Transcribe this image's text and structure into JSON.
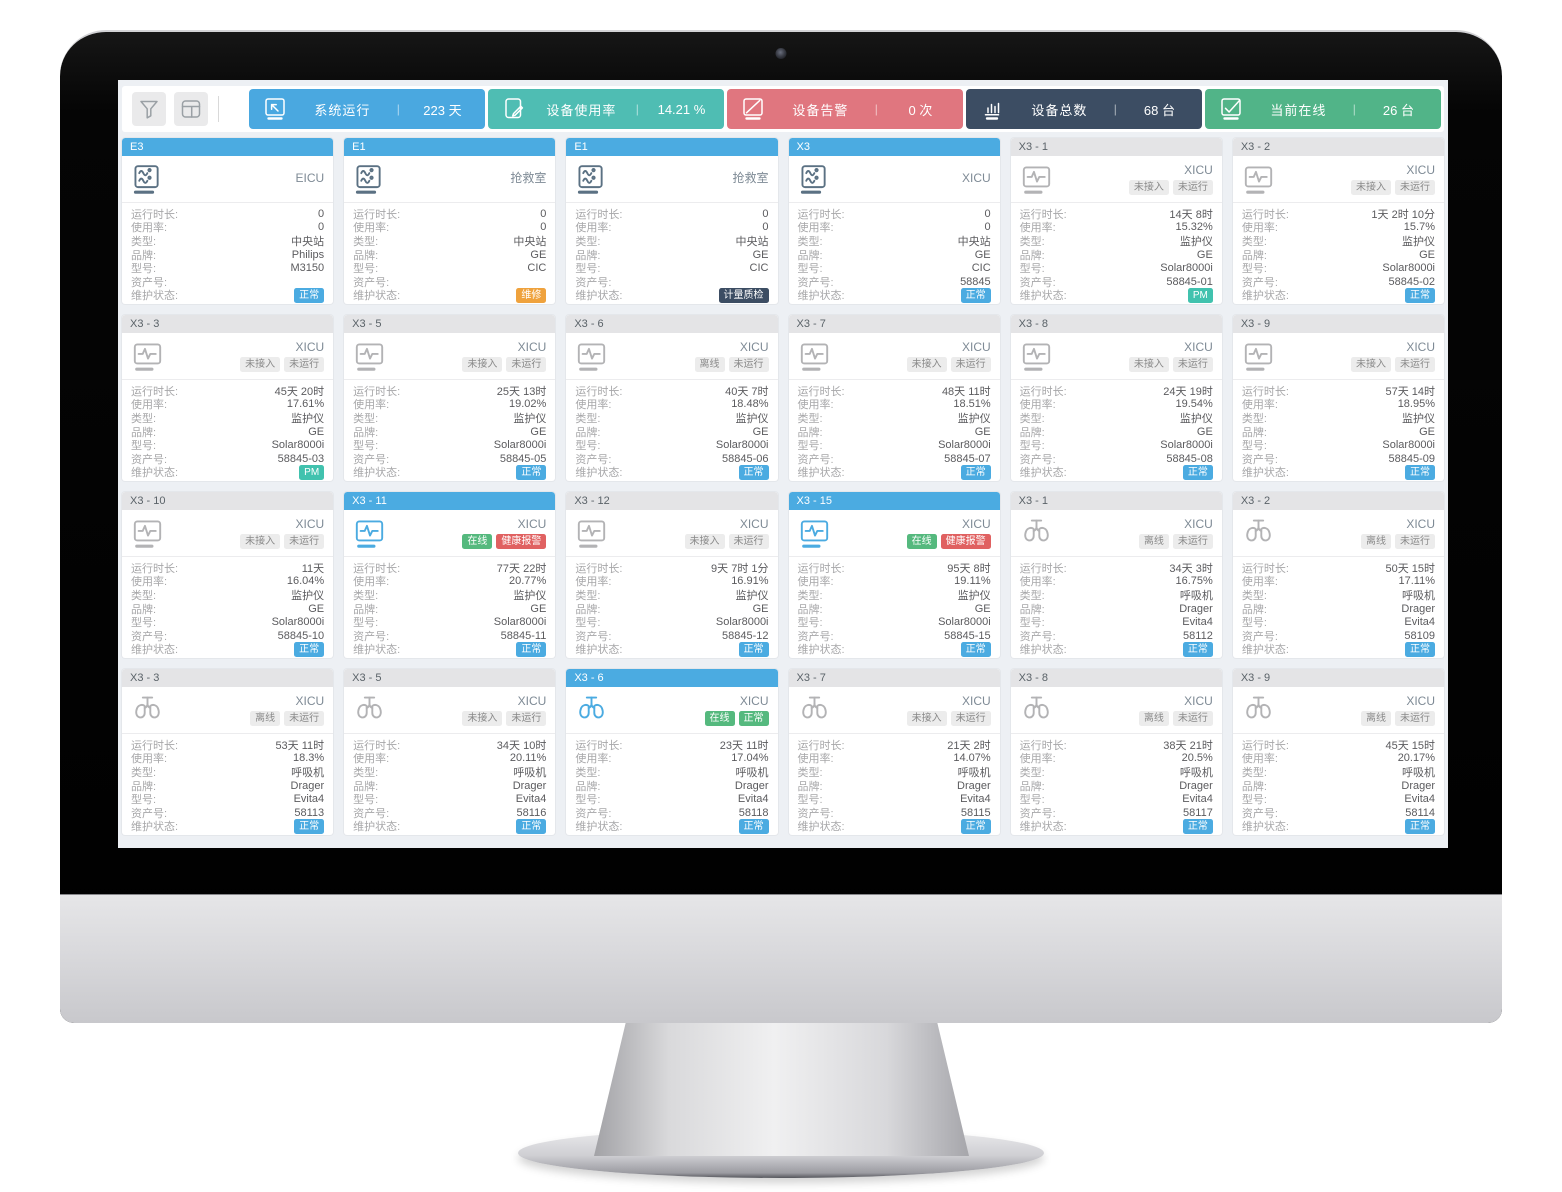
{
  "monitor": {
    "camera_dot": true
  },
  "toolbar": {
    "filter_button": {
      "icon": "funnel-icon"
    },
    "layout_button": {
      "icon": "layout-icon"
    },
    "stats": [
      {
        "icon": "monitor-cursor-icon",
        "label": "系统运行",
        "value": "223 天",
        "color": "#4aa8e0"
      },
      {
        "icon": "tablet-edit-icon",
        "label": "设备使用率",
        "value": "14.21 %",
        "color": "#4fbdb3"
      },
      {
        "icon": "monitor-alert-icon",
        "label": "设备告警",
        "value": "0 次",
        "color": "#e0767f"
      },
      {
        "icon": "bar-chart-icon",
        "label": "设备总数",
        "value": "68 台",
        "color": "#3c4d63"
      },
      {
        "icon": "monitor-online-icon",
        "label": "当前在线",
        "value": "26 台",
        "color": "#51b488"
      }
    ]
  },
  "field_labels": {
    "runtime": "运行时长:",
    "usage": "使用率:",
    "type": "类型:",
    "brand": "品牌:",
    "model": "型号:",
    "asset": "资产号:",
    "maintenance": "维护状态:"
  },
  "header_colors": {
    "blue": {
      "bg": "#4babe1",
      "fg": "#ffffff"
    },
    "gray": {
      "bg": "#e4e4e6",
      "fg": "#5a6268"
    }
  },
  "icon_colors": {
    "slate": "#5b7183",
    "gray": "#b3b3b5",
    "online": "#4babe1"
  },
  "status_colors": {
    "gray": {
      "bg": "#ececec",
      "fg": "#898989"
    },
    "green": {
      "bg": "#55b97e",
      "fg": "#ffffff"
    },
    "red": {
      "bg": "#e06161",
      "fg": "#ffffff"
    },
    "blue": {
      "bg": "#4babe1",
      "fg": "#ffffff"
    },
    "orange": {
      "bg": "#efa23d",
      "fg": "#ffffff"
    },
    "navy": {
      "bg": "#3c4d63",
      "fg": "#ffffff"
    },
    "teal": {
      "bg": "#41c2ae",
      "fg": "#ffffff"
    }
  },
  "cards": [
    {
      "id": "E3",
      "header": "blue",
      "icon": "central-station-icon",
      "state": "slate",
      "location": "EICU",
      "badges": [],
      "fields": {
        "runtime": "0",
        "usage": "0",
        "type": "中央站",
        "brand": "Philips",
        "model": "M3150",
        "asset": ""
      },
      "maintenance": {
        "text": "正常",
        "style": "blue"
      }
    },
    {
      "id": "E1",
      "header": "blue",
      "icon": "central-station-icon",
      "state": "slate",
      "location": "抢救室",
      "badges": [],
      "fields": {
        "runtime": "0",
        "usage": "0",
        "type": "中央站",
        "brand": "GE",
        "model": "CIC",
        "asset": ""
      },
      "maintenance": {
        "text": "维修",
        "style": "orange"
      }
    },
    {
      "id": "E1",
      "header": "blue",
      "icon": "central-station-icon",
      "state": "slate",
      "location": "抢救室",
      "badges": [],
      "fields": {
        "runtime": "0",
        "usage": "0",
        "type": "中央站",
        "brand": "GE",
        "model": "CIC",
        "asset": ""
      },
      "maintenance": {
        "text": "计量质检",
        "style": "navy"
      }
    },
    {
      "id": "X3",
      "header": "blue",
      "icon": "central-station-icon",
      "state": "slate",
      "location": "XICU",
      "badges": [],
      "fields": {
        "runtime": "0",
        "usage": "0",
        "type": "中央站",
        "brand": "GE",
        "model": "CIC",
        "asset": "58845"
      },
      "maintenance": {
        "text": "正常",
        "style": "blue"
      }
    },
    {
      "id": "X3 - 1",
      "header": "gray",
      "icon": "patient-monitor-icon",
      "state": "gray",
      "location": "XICU",
      "badges": [
        {
          "text": "未接入",
          "style": "gray"
        },
        {
          "text": "未运行",
          "style": "gray"
        }
      ],
      "fields": {
        "runtime": "14天 8时",
        "usage": "15.32%",
        "type": "监护仪",
        "brand": "GE",
        "model": "Solar8000i",
        "asset": "58845-01"
      },
      "maintenance": {
        "text": "PM",
        "style": "teal"
      }
    },
    {
      "id": "X3 - 2",
      "header": "gray",
      "icon": "patient-monitor-icon",
      "state": "gray",
      "location": "XICU",
      "badges": [
        {
          "text": "未接入",
          "style": "gray"
        },
        {
          "text": "未运行",
          "style": "gray"
        }
      ],
      "fields": {
        "runtime": "1天 2时 10分",
        "usage": "15.7%",
        "type": "监护仪",
        "brand": "GE",
        "model": "Solar8000i",
        "asset": "58845-02"
      },
      "maintenance": {
        "text": "正常",
        "style": "blue"
      }
    },
    {
      "id": "X3 - 3",
      "header": "gray",
      "icon": "patient-monitor-icon",
      "state": "gray",
      "location": "XICU",
      "badges": [
        {
          "text": "未接入",
          "style": "gray"
        },
        {
          "text": "未运行",
          "style": "gray"
        }
      ],
      "fields": {
        "runtime": "45天 20时",
        "usage": "17.61%",
        "type": "监护仪",
        "brand": "GE",
        "model": "Solar8000i",
        "asset": "58845-03"
      },
      "maintenance": {
        "text": "PM",
        "style": "teal"
      }
    },
    {
      "id": "X3 - 5",
      "header": "gray",
      "icon": "patient-monitor-icon",
      "state": "gray",
      "location": "XICU",
      "badges": [
        {
          "text": "未接入",
          "style": "gray"
        },
        {
          "text": "未运行",
          "style": "gray"
        }
      ],
      "fields": {
        "runtime": "25天 13时",
        "usage": "19.02%",
        "type": "监护仪",
        "brand": "GE",
        "model": "Solar8000i",
        "asset": "58845-05"
      },
      "maintenance": {
        "text": "正常",
        "style": "blue"
      }
    },
    {
      "id": "X3 - 6",
      "header": "gray",
      "icon": "patient-monitor-icon",
      "state": "gray",
      "location": "XICU",
      "badges": [
        {
          "text": "离线",
          "style": "gray"
        },
        {
          "text": "未运行",
          "style": "gray"
        }
      ],
      "fields": {
        "runtime": "40天 7时",
        "usage": "18.48%",
        "type": "监护仪",
        "brand": "GE",
        "model": "Solar8000i",
        "asset": "58845-06"
      },
      "maintenance": {
        "text": "正常",
        "style": "blue"
      }
    },
    {
      "id": "X3 - 7",
      "header": "gray",
      "icon": "patient-monitor-icon",
      "state": "gray",
      "location": "XICU",
      "badges": [
        {
          "text": "未接入",
          "style": "gray"
        },
        {
          "text": "未运行",
          "style": "gray"
        }
      ],
      "fields": {
        "runtime": "48天 11时",
        "usage": "18.51%",
        "type": "监护仪",
        "brand": "GE",
        "model": "Solar8000i",
        "asset": "58845-07"
      },
      "maintenance": {
        "text": "正常",
        "style": "blue"
      }
    },
    {
      "id": "X3 - 8",
      "header": "gray",
      "icon": "patient-monitor-icon",
      "state": "gray",
      "location": "XICU",
      "badges": [
        {
          "text": "未接入",
          "style": "gray"
        },
        {
          "text": "未运行",
          "style": "gray"
        }
      ],
      "fields": {
        "runtime": "24天 19时",
        "usage": "19.54%",
        "type": "监护仪",
        "brand": "GE",
        "model": "Solar8000i",
        "asset": "58845-08"
      },
      "maintenance": {
        "text": "正常",
        "style": "blue"
      }
    },
    {
      "id": "X3 - 9",
      "header": "gray",
      "icon": "patient-monitor-icon",
      "state": "gray",
      "location": "XICU",
      "badges": [
        {
          "text": "未接入",
          "style": "gray"
        },
        {
          "text": "未运行",
          "style": "gray"
        }
      ],
      "fields": {
        "runtime": "57天 14时",
        "usage": "18.95%",
        "type": "监护仪",
        "brand": "GE",
        "model": "Solar8000i",
        "asset": "58845-09"
      },
      "maintenance": {
        "text": "正常",
        "style": "blue"
      }
    },
    {
      "id": "X3 - 10",
      "header": "gray",
      "icon": "patient-monitor-icon",
      "state": "gray",
      "location": "XICU",
      "badges": [
        {
          "text": "未接入",
          "style": "gray"
        },
        {
          "text": "未运行",
          "style": "gray"
        }
      ],
      "fields": {
        "runtime": "11天",
        "usage": "16.04%",
        "type": "监护仪",
        "brand": "GE",
        "model": "Solar8000i",
        "asset": "58845-10"
      },
      "maintenance": {
        "text": "正常",
        "style": "blue"
      }
    },
    {
      "id": "X3 - 11",
      "header": "blue",
      "icon": "patient-monitor-icon",
      "state": "online",
      "location": "XICU",
      "badges": [
        {
          "text": "在线",
          "style": "green"
        },
        {
          "text": "健康报警",
          "style": "red"
        }
      ],
      "fields": {
        "runtime": "77天 22时",
        "usage": "20.77%",
        "type": "监护仪",
        "brand": "GE",
        "model": "Solar8000i",
        "asset": "58845-11"
      },
      "maintenance": {
        "text": "正常",
        "style": "blue"
      }
    },
    {
      "id": "X3 - 12",
      "header": "gray",
      "icon": "patient-monitor-icon",
      "state": "gray",
      "location": "XICU",
      "badges": [
        {
          "text": "未接入",
          "style": "gray"
        },
        {
          "text": "未运行",
          "style": "gray"
        }
      ],
      "fields": {
        "runtime": "9天 7时 1分",
        "usage": "16.91%",
        "type": "监护仪",
        "brand": "GE",
        "model": "Solar8000i",
        "asset": "58845-12"
      },
      "maintenance": {
        "text": "正常",
        "style": "blue"
      }
    },
    {
      "id": "X3 - 15",
      "header": "blue",
      "icon": "patient-monitor-icon",
      "state": "online",
      "location": "XICU",
      "badges": [
        {
          "text": "在线",
          "style": "green"
        },
        {
          "text": "健康报警",
          "style": "red"
        }
      ],
      "fields": {
        "runtime": "95天 8时",
        "usage": "19.11%",
        "type": "监护仪",
        "brand": "GE",
        "model": "Solar8000i",
        "asset": "58845-15"
      },
      "maintenance": {
        "text": "正常",
        "style": "blue"
      }
    },
    {
      "id": "X3 - 1",
      "header": "gray",
      "icon": "ventilator-icon",
      "state": "gray",
      "location": "XICU",
      "badges": [
        {
          "text": "离线",
          "style": "gray"
        },
        {
          "text": "未运行",
          "style": "gray"
        }
      ],
      "fields": {
        "runtime": "34天 3时",
        "usage": "16.75%",
        "type": "呼吸机",
        "brand": "Drager",
        "model": "Evita4",
        "asset": "58112"
      },
      "maintenance": {
        "text": "正常",
        "style": "blue"
      }
    },
    {
      "id": "X3 - 2",
      "header": "gray",
      "icon": "ventilator-icon",
      "state": "gray",
      "location": "XICU",
      "badges": [
        {
          "text": "离线",
          "style": "gray"
        },
        {
          "text": "未运行",
          "style": "gray"
        }
      ],
      "fields": {
        "runtime": "50天 15时",
        "usage": "17.11%",
        "type": "呼吸机",
        "brand": "Drager",
        "model": "Evita4",
        "asset": "58109"
      },
      "maintenance": {
        "text": "正常",
        "style": "blue"
      }
    },
    {
      "id": "X3 - 3",
      "header": "gray",
      "icon": "ventilator-icon",
      "state": "gray",
      "location": "XICU",
      "badges": [
        {
          "text": "离线",
          "style": "gray"
        },
        {
          "text": "未运行",
          "style": "gray"
        }
      ],
      "fields": {
        "runtime": "53天 11时",
        "usage": "18.3%",
        "type": "呼吸机",
        "brand": "Drager",
        "model": "Evita4",
        "asset": "58113"
      },
      "maintenance": {
        "text": "正常",
        "style": "blue"
      }
    },
    {
      "id": "X3 - 5",
      "header": "gray",
      "icon": "ventilator-icon",
      "state": "gray",
      "location": "XICU",
      "badges": [
        {
          "text": "未接入",
          "style": "gray"
        },
        {
          "text": "未运行",
          "style": "gray"
        }
      ],
      "fields": {
        "runtime": "34天 10时",
        "usage": "20.11%",
        "type": "呼吸机",
        "brand": "Drager",
        "model": "Evita4",
        "asset": "58116"
      },
      "maintenance": {
        "text": "正常",
        "style": "blue"
      }
    },
    {
      "id": "X3 - 6",
      "header": "blue",
      "icon": "ventilator-icon",
      "state": "online",
      "location": "XICU",
      "badges": [
        {
          "text": "在线",
          "style": "green"
        },
        {
          "text": "正常",
          "style": "green"
        }
      ],
      "fields": {
        "runtime": "23天 11时",
        "usage": "17.04%",
        "type": "呼吸机",
        "brand": "Drager",
        "model": "Evita4",
        "asset": "58118"
      },
      "maintenance": {
        "text": "正常",
        "style": "blue"
      }
    },
    {
      "id": "X3 - 7",
      "header": "gray",
      "icon": "ventilator-icon",
      "state": "gray",
      "location": "XICU",
      "badges": [
        {
          "text": "未接入",
          "style": "gray"
        },
        {
          "text": "未运行",
          "style": "gray"
        }
      ],
      "fields": {
        "runtime": "21天 2时",
        "usage": "14.07%",
        "type": "呼吸机",
        "brand": "Drager",
        "model": "Evita4",
        "asset": "58115"
      },
      "maintenance": {
        "text": "正常",
        "style": "blue"
      }
    },
    {
      "id": "X3 - 8",
      "header": "gray",
      "icon": "ventilator-icon",
      "state": "gray",
      "location": "XICU",
      "badges": [
        {
          "text": "离线",
          "style": "gray"
        },
        {
          "text": "未运行",
          "style": "gray"
        }
      ],
      "fields": {
        "runtime": "38天 21时",
        "usage": "20.5%",
        "type": "呼吸机",
        "brand": "Drager",
        "model": "Evita4",
        "asset": "58117"
      },
      "maintenance": {
        "text": "正常",
        "style": "blue"
      }
    },
    {
      "id": "X3 - 9",
      "header": "gray",
      "icon": "ventilator-icon",
      "state": "gray",
      "location": "XICU",
      "badges": [
        {
          "text": "离线",
          "style": "gray"
        },
        {
          "text": "未运行",
          "style": "gray"
        }
      ],
      "fields": {
        "runtime": "45天 15时",
        "usage": "20.17%",
        "type": "呼吸机",
        "brand": "Drager",
        "model": "Evita4",
        "asset": "58114"
      },
      "maintenance": {
        "text": "正常",
        "style": "blue"
      }
    }
  ]
}
